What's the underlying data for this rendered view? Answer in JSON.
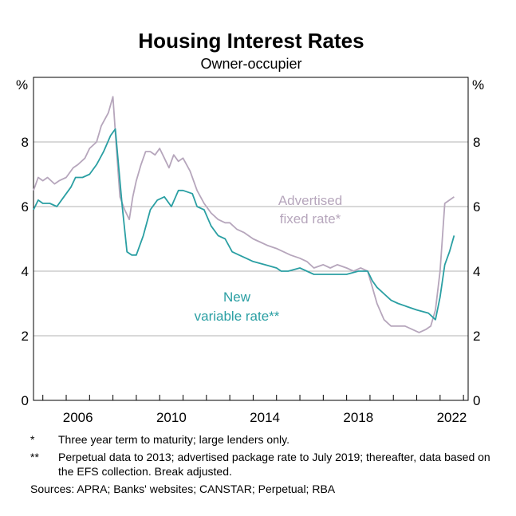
{
  "chart_data": {
    "type": "line",
    "title": "Housing Interest Rates",
    "subtitle": "Owner-occupier",
    "unit_left": "%",
    "unit_right": "%",
    "xlim": [
      2004.6,
      2023.2
    ],
    "ylim": [
      0,
      10
    ],
    "x_ticks": [
      2006,
      2010,
      2014,
      2018,
      2022
    ],
    "y_ticks": [
      0,
      2,
      4,
      6,
      8
    ],
    "grid": true,
    "series": [
      {
        "name": "Advertised fixed rate*",
        "label_lines": [
          "Advertised",
          "fixed rate*"
        ],
        "color": "#b6a6bc",
        "x": [
          2004.6,
          2004.8,
          2005.0,
          2005.2,
          2005.5,
          2005.7,
          2006.0,
          2006.3,
          2006.5,
          2006.8,
          2007.0,
          2007.3,
          2007.5,
          2007.8,
          2008.0,
          2008.15,
          2008.3,
          2008.5,
          2008.7,
          2008.85,
          2009.0,
          2009.2,
          2009.4,
          2009.6,
          2009.8,
          2010.0,
          2010.2,
          2010.4,
          2010.6,
          2010.8,
          2011.0,
          2011.3,
          2011.6,
          2011.9,
          2012.2,
          2012.5,
          2012.8,
          2013.0,
          2013.3,
          2013.6,
          2014.0,
          2014.3,
          2014.6,
          2015.0,
          2015.3,
          2015.6,
          2016.0,
          2016.3,
          2016.6,
          2017.0,
          2017.3,
          2017.6,
          2018.0,
          2018.3,
          2018.6,
          2018.9,
          2019.1,
          2019.3,
          2019.6,
          2019.9,
          2020.2,
          2020.5,
          2020.8,
          2021.1,
          2021.4,
          2021.6,
          2021.8,
          2022.0,
          2022.2,
          2022.4,
          2022.6
        ],
        "values": [
          6.5,
          6.9,
          6.8,
          6.9,
          6.7,
          6.8,
          6.9,
          7.2,
          7.3,
          7.5,
          7.8,
          8.0,
          8.5,
          8.9,
          9.4,
          7.8,
          6.3,
          5.9,
          5.6,
          6.3,
          6.8,
          7.3,
          7.7,
          7.7,
          7.6,
          7.8,
          7.5,
          7.2,
          7.6,
          7.4,
          7.5,
          7.1,
          6.5,
          6.1,
          5.8,
          5.6,
          5.5,
          5.5,
          5.3,
          5.2,
          5.0,
          4.9,
          4.8,
          4.7,
          4.6,
          4.5,
          4.4,
          4.3,
          4.1,
          4.2,
          4.1,
          4.2,
          4.1,
          4.0,
          4.1,
          4.0,
          3.5,
          3.0,
          2.5,
          2.3,
          2.3,
          2.3,
          2.2,
          2.1,
          2.2,
          2.3,
          2.8,
          4.0,
          6.1,
          6.2,
          6.3
        ]
      },
      {
        "name": "New variable rate**",
        "label_lines": [
          "New",
          "variable rate**"
        ],
        "color": "#2a9fa3",
        "x": [
          2004.6,
          2004.8,
          2005.0,
          2005.3,
          2005.6,
          2005.9,
          2006.2,
          2006.4,
          2006.7,
          2007.0,
          2007.3,
          2007.6,
          2007.9,
          2008.1,
          2008.25,
          2008.4,
          2008.6,
          2008.8,
          2009.0,
          2009.3,
          2009.6,
          2009.9,
          2010.2,
          2010.5,
          2010.8,
          2011.0,
          2011.4,
          2011.6,
          2011.9,
          2012.2,
          2012.5,
          2012.8,
          2013.1,
          2013.4,
          2013.7,
          2014.0,
          2014.5,
          2015.0,
          2015.2,
          2015.5,
          2016.0,
          2016.3,
          2016.6,
          2017.0,
          2017.5,
          2018.0,
          2018.5,
          2018.9,
          2019.1,
          2019.3,
          2019.6,
          2019.9,
          2020.2,
          2020.6,
          2021.0,
          2021.5,
          2021.8,
          2022.0,
          2022.2,
          2022.4,
          2022.6
        ],
        "values": [
          5.9,
          6.2,
          6.1,
          6.1,
          6.0,
          6.3,
          6.6,
          6.9,
          6.9,
          7.0,
          7.3,
          7.7,
          8.2,
          8.4,
          7.2,
          6.0,
          4.6,
          4.5,
          4.5,
          5.1,
          5.9,
          6.2,
          6.3,
          6.0,
          6.5,
          6.5,
          6.4,
          6.0,
          5.9,
          5.4,
          5.1,
          5.0,
          4.6,
          4.5,
          4.4,
          4.3,
          4.2,
          4.1,
          4.0,
          4.0,
          4.1,
          4.0,
          3.9,
          3.9,
          3.9,
          3.9,
          4.0,
          4.0,
          3.7,
          3.5,
          3.3,
          3.1,
          3.0,
          2.9,
          2.8,
          2.7,
          2.5,
          3.2,
          4.2,
          4.6,
          5.1
        ]
      }
    ]
  },
  "notes": [
    {
      "mark": "*",
      "text": "Three year term to maturity; large lenders only."
    },
    {
      "mark": "**",
      "text": "Perpetual data to 2013; advertised package rate to July 2019; thereafter, data based on the EFS collection. Break adjusted."
    }
  ],
  "sources": "Sources: APRA; Banks' websites; CANSTAR; Perpetual; RBA"
}
